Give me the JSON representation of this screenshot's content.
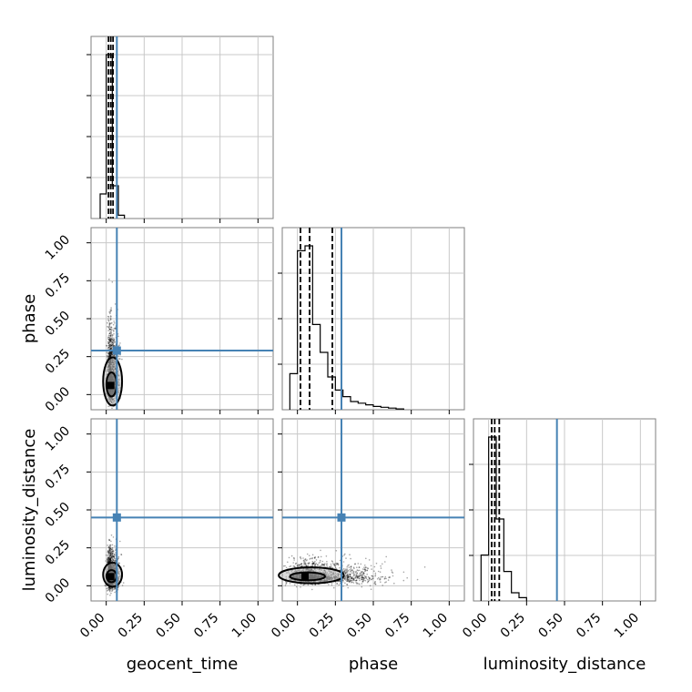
{
  "chart_data": {
    "type": "corner",
    "parameters": [
      "geocent_time",
      "phase",
      "luminosity_distance"
    ],
    "axis_range": [
      -0.1,
      1.1
    ],
    "tick_values": [
      0.0,
      0.25,
      0.5,
      0.75,
      1.0
    ],
    "tick_labels": [
      "0.00",
      "0.25",
      "0.50",
      "0.75",
      "1.00"
    ],
    "grid": true,
    "truth_values": {
      "geocent_time": 0.07,
      "phase": 0.29,
      "luminosity_distance": 0.45
    },
    "truth_color": "#4682b4",
    "histograms": [
      {
        "param": "geocent_time",
        "bins": [
          [
            -0.04,
            0.0,
            0.15
          ],
          [
            0.0,
            0.04,
            1.0
          ],
          [
            0.04,
            0.08,
            0.2
          ],
          [
            0.08,
            0.12,
            0.02
          ]
        ],
        "quantiles": [
          0.015,
          0.03,
          0.045
        ]
      },
      {
        "param": "phase",
        "bins": [
          [
            -0.05,
            0.0,
            0.22
          ],
          [
            0.0,
            0.05,
            0.97
          ],
          [
            0.05,
            0.1,
            1.0
          ],
          [
            0.1,
            0.15,
            0.52
          ],
          [
            0.15,
            0.2,
            0.35
          ],
          [
            0.2,
            0.25,
            0.2
          ],
          [
            0.25,
            0.3,
            0.12
          ],
          [
            0.3,
            0.35,
            0.08
          ],
          [
            0.35,
            0.4,
            0.05
          ],
          [
            0.4,
            0.45,
            0.04
          ],
          [
            0.45,
            0.5,
            0.03
          ],
          [
            0.5,
            0.55,
            0.02
          ],
          [
            0.55,
            0.6,
            0.015
          ],
          [
            0.6,
            0.65,
            0.01
          ],
          [
            0.65,
            0.7,
            0.005
          ]
        ],
        "quantiles": [
          0.02,
          0.08,
          0.23
        ]
      },
      {
        "param": "luminosity_distance",
        "bins": [
          [
            -0.05,
            0.0,
            0.28
          ],
          [
            0.0,
            0.05,
            1.0
          ],
          [
            0.05,
            0.1,
            0.5
          ],
          [
            0.1,
            0.15,
            0.18
          ],
          [
            0.15,
            0.2,
            0.05
          ],
          [
            0.2,
            0.25,
            0.02
          ]
        ],
        "quantiles": [
          0.02,
          0.04,
          0.07
        ]
      }
    ],
    "scatter_panels": [
      {
        "x": "geocent_time",
        "y": "phase",
        "center": [
          0.03,
          0.1
        ],
        "spread": [
          0.018,
          0.12
        ],
        "density_peak": [
          0.03,
          0.06
        ]
      },
      {
        "x": "geocent_time",
        "y": "luminosity_distance",
        "center": [
          0.03,
          0.06
        ],
        "spread": [
          0.018,
          0.06
        ],
        "density_peak": [
          0.03,
          0.06
        ]
      },
      {
        "x": "phase",
        "y": "luminosity_distance",
        "center": [
          0.12,
          0.06
        ],
        "spread": [
          0.15,
          0.04
        ],
        "density_peak": [
          0.05,
          0.06
        ]
      }
    ]
  }
}
